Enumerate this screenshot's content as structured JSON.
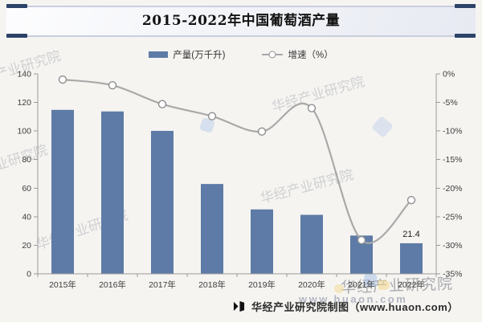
{
  "title": "2015-2022年中国葡萄酒产量",
  "legend": {
    "bar_label": "产量(万千升)",
    "line_label": "增速（%）"
  },
  "footer": {
    "credit": "华经产业研究院制图（www.huaon.com）"
  },
  "watermarks": {
    "brand": "华经产业研究院",
    "url": "www.huaon.com"
  },
  "colors": {
    "bar": "#5d7ba6",
    "line": "#a9a9a9",
    "marker_fill": "#ffffff",
    "marker_stroke": "#8f8f8f",
    "axis": "#9a9a9a",
    "tick_text": "#3d3d3d",
    "annotation_text": "#1f1f1f",
    "accent_navy": "#2c4368"
  },
  "chart_data": {
    "type": "bar",
    "title": "2015-2022年中国葡萄酒产量",
    "categories": [
      "2015年",
      "2016年",
      "2017年",
      "2018年",
      "2019年",
      "2020年",
      "2021年",
      "2022年"
    ],
    "series": [
      {
        "name": "产量(万千升)",
        "type": "bar",
        "axis": "left",
        "values": [
          114.8,
          113.7,
          100.1,
          62.9,
          45.1,
          41.3,
          26.8,
          21.4
        ]
      },
      {
        "name": "增速（%）",
        "type": "line",
        "axis": "right",
        "values": [
          -1.0,
          -2.0,
          -5.3,
          -7.4,
          -10.1,
          -6.0,
          -29.1,
          -22.1
        ]
      }
    ],
    "left_axis": {
      "min": 0,
      "max": 140,
      "step": 20,
      "tick_labels": [
        "0",
        "20",
        "40",
        "60",
        "80",
        "100",
        "120",
        "140"
      ]
    },
    "right_axis": {
      "min": -35,
      "max": 0,
      "step": 5,
      "tick_labels": [
        "0%",
        "-5%",
        "-10%",
        "-15%",
        "-20%",
        "-25%",
        "-30%",
        "-35%"
      ]
    },
    "grid": false,
    "legend_position": "top",
    "annotations": [
      {
        "category": "2022年",
        "series": "产量(万千升)",
        "text": "21.4"
      }
    ]
  }
}
